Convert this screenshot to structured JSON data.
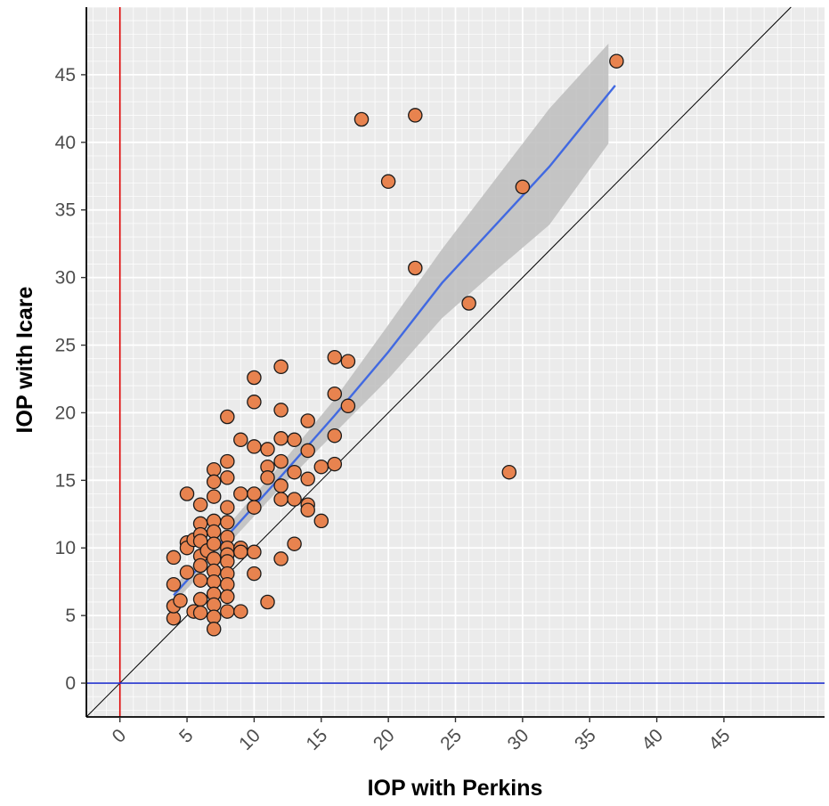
{
  "chart_data": {
    "type": "scatter",
    "xlabel": "IOP with Perkins",
    "ylabel": "IOP with Icare",
    "xlim": [
      -2.5,
      52.5
    ],
    "ylim": [
      -2.5,
      50
    ],
    "x_ticks": [
      0,
      5,
      10,
      15,
      20,
      25,
      30,
      35,
      40,
      45
    ],
    "y_ticks": [
      0,
      5,
      10,
      15,
      20,
      25,
      30,
      35,
      40,
      45
    ],
    "x_tick_labels": [
      "0",
      "5",
      "10",
      "15",
      "20",
      "25",
      "30",
      "35",
      "40",
      "45"
    ],
    "y_tick_labels": [
      "0",
      "5",
      "10",
      "15",
      "20",
      "25",
      "30",
      "35",
      "40",
      "45"
    ],
    "grid": true,
    "minor_grid_step": 1,
    "points": [
      {
        "x": 4,
        "y": 4.8
      },
      {
        "x": 4,
        "y": 5.7
      },
      {
        "x": 4,
        "y": 7.3
      },
      {
        "x": 4,
        "y": 9.3
      },
      {
        "x": 4.5,
        "y": 6.1
      },
      {
        "x": 5,
        "y": 14.0
      },
      {
        "x": 5,
        "y": 10.4
      },
      {
        "x": 5,
        "y": 10.0
      },
      {
        "x": 5,
        "y": 8.2
      },
      {
        "x": 5.5,
        "y": 5.3
      },
      {
        "x": 5.5,
        "y": 10.6
      },
      {
        "x": 6,
        "y": 13.2
      },
      {
        "x": 6,
        "y": 11.8
      },
      {
        "x": 6,
        "y": 11.0
      },
      {
        "x": 6,
        "y": 10.5
      },
      {
        "x": 6,
        "y": 9.4
      },
      {
        "x": 6,
        "y": 8.7
      },
      {
        "x": 6,
        "y": 7.6
      },
      {
        "x": 6,
        "y": 6.2
      },
      {
        "x": 6,
        "y": 5.2
      },
      {
        "x": 6.5,
        "y": 9.8
      },
      {
        "x": 7,
        "y": 15.8
      },
      {
        "x": 7,
        "y": 14.9
      },
      {
        "x": 7,
        "y": 13.8
      },
      {
        "x": 7,
        "y": 12.0
      },
      {
        "x": 7,
        "y": 11.2
      },
      {
        "x": 7,
        "y": 10.3
      },
      {
        "x": 7,
        "y": 9.2
      },
      {
        "x": 7,
        "y": 8.3
      },
      {
        "x": 7,
        "y": 7.5
      },
      {
        "x": 7,
        "y": 6.6
      },
      {
        "x": 7,
        "y": 5.8
      },
      {
        "x": 7,
        "y": 4.9
      },
      {
        "x": 7,
        "y": 4.0
      },
      {
        "x": 8,
        "y": 19.7
      },
      {
        "x": 8,
        "y": 16.4
      },
      {
        "x": 8,
        "y": 15.2
      },
      {
        "x": 8,
        "y": 13.0
      },
      {
        "x": 8,
        "y": 11.9
      },
      {
        "x": 8,
        "y": 10.8
      },
      {
        "x": 8,
        "y": 10.0
      },
      {
        "x": 8,
        "y": 9.5
      },
      {
        "x": 8,
        "y": 9.0
      },
      {
        "x": 8,
        "y": 8.1
      },
      {
        "x": 8,
        "y": 7.3
      },
      {
        "x": 8,
        "y": 6.4
      },
      {
        "x": 8,
        "y": 5.3
      },
      {
        "x": 9,
        "y": 18.0
      },
      {
        "x": 9,
        "y": 14.0
      },
      {
        "x": 9,
        "y": 10.0
      },
      {
        "x": 9,
        "y": 9.7
      },
      {
        "x": 9,
        "y": 5.3
      },
      {
        "x": 10,
        "y": 22.6
      },
      {
        "x": 10,
        "y": 20.8
      },
      {
        "x": 10,
        "y": 17.5
      },
      {
        "x": 10,
        "y": 14.0
      },
      {
        "x": 10,
        "y": 13.0
      },
      {
        "x": 10,
        "y": 9.7
      },
      {
        "x": 10,
        "y": 8.1
      },
      {
        "x": 11,
        "y": 17.3
      },
      {
        "x": 11,
        "y": 16.0
      },
      {
        "x": 11,
        "y": 15.2
      },
      {
        "x": 11,
        "y": 6.0
      },
      {
        "x": 12,
        "y": 23.4
      },
      {
        "x": 12,
        "y": 20.2
      },
      {
        "x": 12,
        "y": 18.1
      },
      {
        "x": 12,
        "y": 16.4
      },
      {
        "x": 12,
        "y": 14.6
      },
      {
        "x": 12,
        "y": 13.6
      },
      {
        "x": 12,
        "y": 9.2
      },
      {
        "x": 13,
        "y": 18.0
      },
      {
        "x": 13,
        "y": 15.6
      },
      {
        "x": 13,
        "y": 13.6
      },
      {
        "x": 13,
        "y": 10.3
      },
      {
        "x": 14,
        "y": 19.4
      },
      {
        "x": 14,
        "y": 17.2
      },
      {
        "x": 14,
        "y": 15.1
      },
      {
        "x": 14,
        "y": 13.2
      },
      {
        "x": 14,
        "y": 12.8
      },
      {
        "x": 15,
        "y": 16.0
      },
      {
        "x": 15,
        "y": 12.0
      },
      {
        "x": 16,
        "y": 24.1
      },
      {
        "x": 16,
        "y": 21.4
      },
      {
        "x": 16,
        "y": 18.3
      },
      {
        "x": 16,
        "y": 16.2
      },
      {
        "x": 17,
        "y": 23.8
      },
      {
        "x": 17,
        "y": 20.5
      },
      {
        "x": 18,
        "y": 41.7
      },
      {
        "x": 20,
        "y": 37.1
      },
      {
        "x": 22,
        "y": 42.0
      },
      {
        "x": 22,
        "y": 30.7
      },
      {
        "x": 26,
        "y": 28.1
      },
      {
        "x": 29,
        "y": 15.6
      },
      {
        "x": 30,
        "y": 36.7
      },
      {
        "x": 37,
        "y": 46.0
      }
    ],
    "fit_line": {
      "x": [
        4,
        8,
        12,
        16,
        20,
        24,
        28,
        32,
        36.9
      ],
      "y": [
        6.5,
        10.9,
        15.3,
        19.8,
        24.5,
        29.6,
        33.9,
        38.2,
        44.2
      ]
    },
    "confidence_band": {
      "x": [
        4,
        8,
        12,
        16,
        20,
        24,
        28,
        32,
        36.4
      ],
      "upper": [
        7.1,
        11.6,
        16.2,
        21.0,
        26.5,
        32.1,
        37.3,
        42.5,
        47.3
      ],
      "lower": [
        5.9,
        10.2,
        14.5,
        18.5,
        22.5,
        27.0,
        30.5,
        33.9,
        39.9
      ]
    },
    "reference_lines": {
      "identity": {
        "slope": 1,
        "intercept": 0
      },
      "vertical_x": 0,
      "horizontal_y": 0
    },
    "colors": {
      "panel_bg": "#ebebeb",
      "grid": "#ffffff",
      "point_fill": "#e8834f",
      "point_stroke": "#1a1a1a",
      "fit_line": "#4169e1",
      "band": "#bdbdbd",
      "identity_line": "#000000",
      "vline": "#dd0000",
      "hline": "#2233cc"
    }
  }
}
